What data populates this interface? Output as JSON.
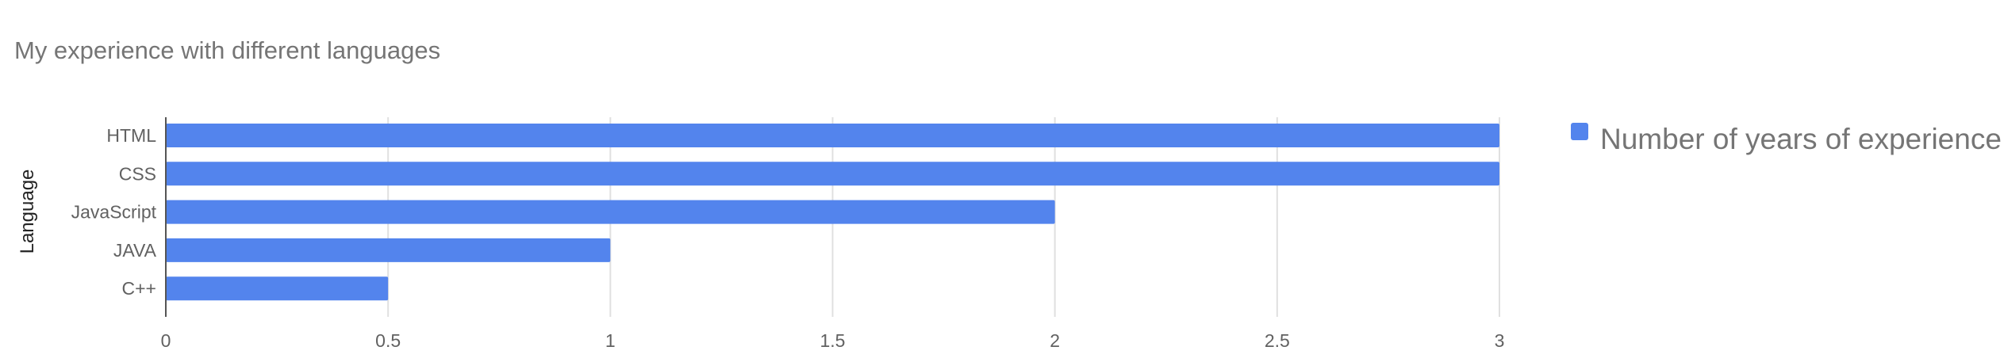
{
  "chart_data": {
    "type": "bar",
    "orientation": "horizontal",
    "title": "My experience with different languages",
    "xlabel": "",
    "ylabel": "Language",
    "categories": [
      "HTML",
      "CSS",
      "JavaScript",
      "JAVA",
      "C++"
    ],
    "series": [
      {
        "name": "Number of years of experience",
        "values": [
          3,
          3,
          2,
          1,
          0.5
        ],
        "color": "#5384ed"
      }
    ],
    "xlim": [
      0,
      3
    ],
    "xticks": [
      "0",
      "0.5",
      "1",
      "1.5",
      "2",
      "2.5",
      "3"
    ],
    "grid": true,
    "legend_position": "right"
  }
}
